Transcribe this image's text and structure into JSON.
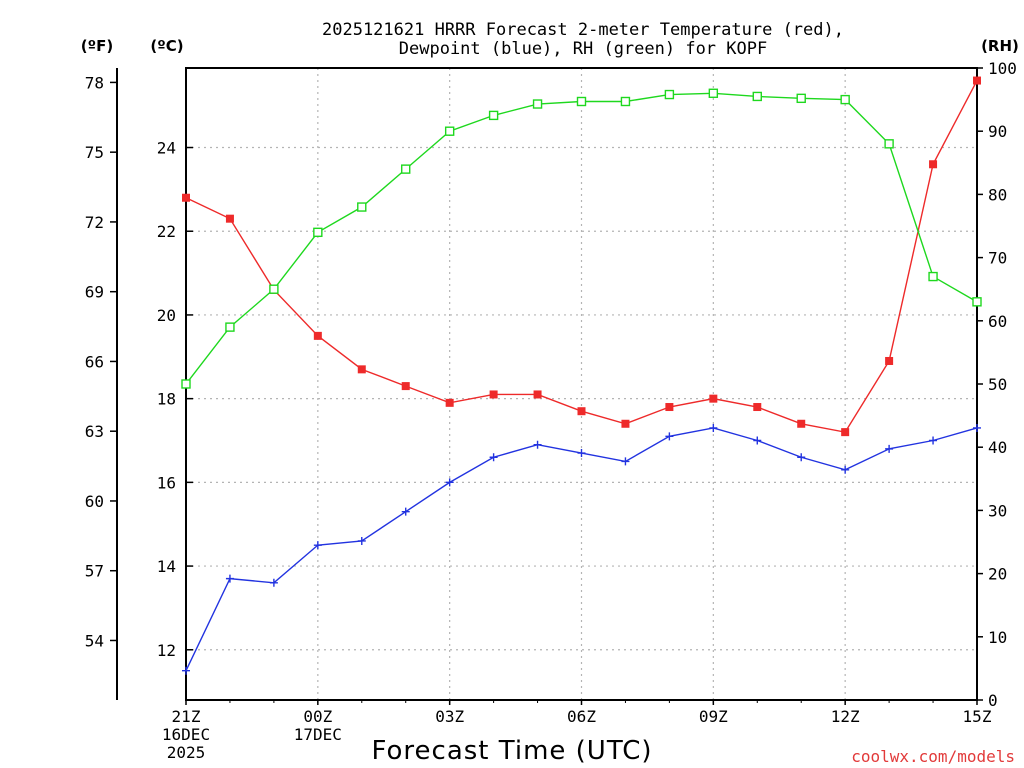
{
  "colors": {
    "temperature": "#ee2a2a",
    "dewpoint": "#2233e0",
    "rh": "#1ed81e",
    "credit": "#e23a3a",
    "grid": "#b4b4b4"
  },
  "units": {
    "fahrenheit": "(ºF)",
    "celsius": "(ºC)",
    "rh": "(RH)"
  },
  "credit": "coolwx.com/models",
  "chart_data": {
    "type": "line",
    "title_line1": "2025121621 HRRR Forecast 2-meter Temperature (red),",
    "title_line2": "Dewpoint (blue), RH (green) for KOPF",
    "xlabel": "Forecast Time (UTC)",
    "x_hours": [
      0,
      1,
      2,
      3,
      4,
      5,
      6,
      7,
      8,
      9,
      10,
      11,
      12,
      13,
      14,
      15,
      16,
      17,
      18
    ],
    "x_ticks": [
      {
        "hour": 0,
        "lines": [
          "21Z",
          "16DEC",
          "2025"
        ]
      },
      {
        "hour": 3,
        "lines": [
          "00Z",
          "17DEC"
        ]
      },
      {
        "hour": 6,
        "lines": [
          "03Z"
        ]
      },
      {
        "hour": 9,
        "lines": [
          "06Z"
        ]
      },
      {
        "hour": 12,
        "lines": [
          "09Z"
        ]
      },
      {
        "hour": 15,
        "lines": [
          "12Z"
        ]
      },
      {
        "hour": 18,
        "lines": [
          "15Z"
        ]
      }
    ],
    "celsius_axis": {
      "range": [
        10.8,
        25.9
      ],
      "ticks": [
        12,
        14,
        16,
        18,
        20,
        22,
        24
      ]
    },
    "fahrenheit_axis": {
      "ticks": [
        54,
        57,
        60,
        63,
        66,
        69,
        72,
        75,
        78
      ]
    },
    "rh_axis": {
      "range": [
        0,
        100
      ],
      "ticks": [
        0,
        10,
        20,
        30,
        40,
        50,
        60,
        70,
        80,
        90,
        100
      ]
    },
    "series": [
      {
        "name": "Temperature",
        "axis": "celsius",
        "color": "#ee2a2a",
        "marker": "filled-square",
        "values": [
          22.8,
          22.3,
          20.6,
          19.5,
          18.7,
          18.3,
          17.9,
          18.1,
          18.1,
          17.7,
          17.4,
          17.8,
          18.0,
          17.8,
          17.4,
          17.2,
          18.9,
          23.6,
          25.6
        ]
      },
      {
        "name": "Dewpoint",
        "axis": "celsius",
        "color": "#2233e0",
        "marker": "plus",
        "values": [
          11.5,
          13.7,
          13.6,
          14.5,
          14.6,
          15.3,
          16.0,
          16.6,
          16.9,
          16.7,
          16.5,
          17.1,
          17.3,
          17.0,
          16.6,
          16.3,
          16.8,
          17.0,
          17.3
        ]
      },
      {
        "name": "RH",
        "axis": "rh",
        "color": "#1ed81e",
        "marker": "open-square",
        "values": [
          50,
          59,
          65,
          74,
          78,
          84,
          90,
          92.5,
          94.3,
          94.7,
          94.7,
          95.8,
          96,
          95.5,
          95.2,
          95,
          88,
          67,
          63
        ]
      }
    ]
  }
}
